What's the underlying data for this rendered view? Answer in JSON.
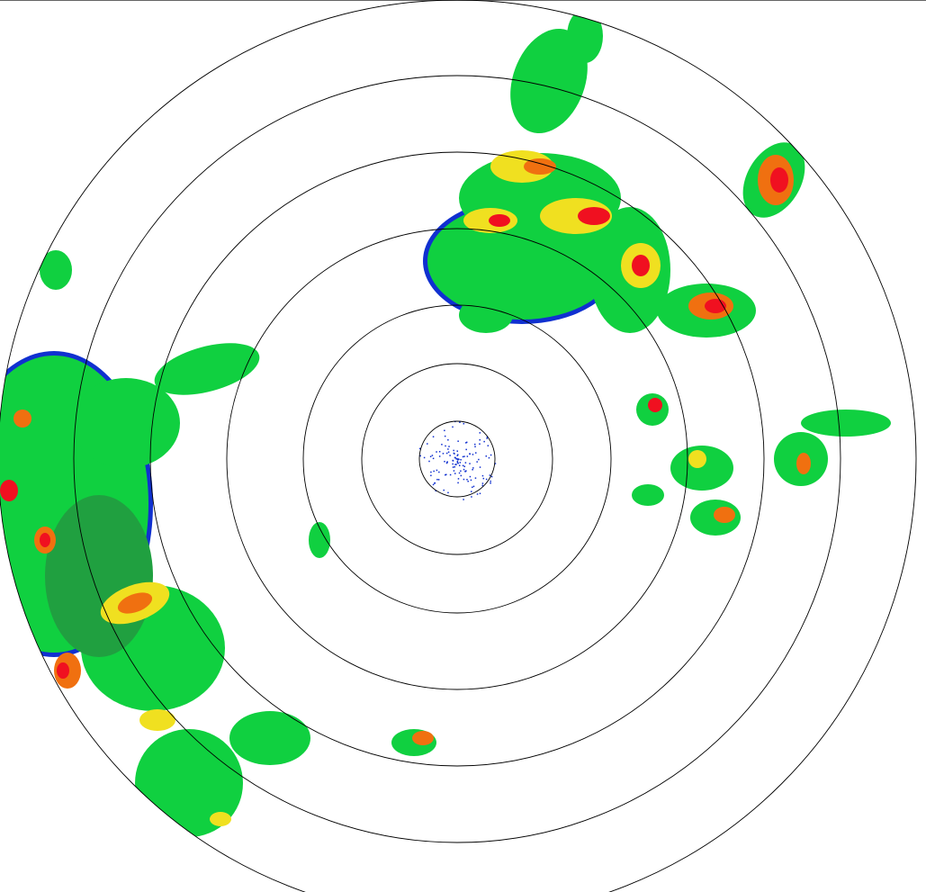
{
  "display": {
    "type": "radar-reflectivity-ppi",
    "range_ring_count": 7,
    "colors": {
      "ring": "#000000",
      "weak": "#1030d0",
      "light": "#20e0a0",
      "moderate": "#10d040",
      "moderate_dark": "#20a040",
      "heavy": "#f0e020",
      "strong": "#f07010",
      "intense": "#f01020"
    }
  }
}
